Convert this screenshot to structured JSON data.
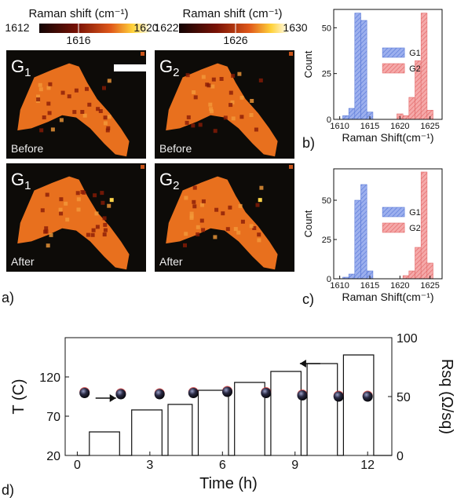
{
  "colors": {
    "g1": "#5b7bd8",
    "g2": "#e36a6a",
    "map_bg": "#0d0b08",
    "map_fill": "#e8701e",
    "map_hot": "#ffd44a",
    "line": "#111111",
    "dot": "#1a1a2a"
  },
  "colorbars": [
    {
      "title": "Raman shift (cm⁻¹)",
      "ticks": [
        "1612",
        "1616",
        "1620"
      ]
    },
    {
      "title": "Raman shift (cm⁻¹)",
      "ticks": [
        "1622",
        "1626",
        "1630"
      ]
    }
  ],
  "maps": [
    {
      "peak": "G",
      "sub": "1",
      "state": "Before"
    },
    {
      "peak": "G",
      "sub": "2",
      "state": "Before"
    },
    {
      "peak": "G",
      "sub": "1",
      "state": "After"
    },
    {
      "peak": "G",
      "sub": "2",
      "state": "After"
    }
  ],
  "panel_labels": {
    "a": "a)",
    "b": "b)",
    "c": "c)",
    "d": "d)"
  },
  "chart_data": [
    {
      "type": "bar",
      "panel": "b",
      "xlabel": "Raman Shift(cm⁻¹)",
      "ylabel": "Count",
      "xlim": [
        1609,
        1627
      ],
      "ylim": [
        0,
        60
      ],
      "xticks": [
        "1610",
        "1615",
        "1620",
        "1625"
      ],
      "yticks": [
        "0",
        "25",
        "50"
      ],
      "bin_width": 1,
      "legend_position": "right",
      "series": [
        {
          "name": "G1",
          "bins": [
            1611,
            1612,
            1613,
            1614,
            1615
          ],
          "values": [
            2,
            6,
            58,
            54,
            4
          ]
        },
        {
          "name": "G2",
          "bins": [
            1620,
            1621,
            1622,
            1623,
            1624,
            1625
          ],
          "values": [
            3,
            2,
            12,
            32,
            58,
            5
          ]
        }
      ]
    },
    {
      "type": "bar",
      "panel": "c",
      "xlabel": "Raman Shift(cm⁻¹)",
      "ylabel": "Count",
      "xlim": [
        1609,
        1627
      ],
      "ylim": [
        0,
        70
      ],
      "xticks": [
        "1610",
        "1615",
        "1620",
        "1625"
      ],
      "yticks": [
        "0",
        "25",
        "50"
      ],
      "bin_width": 1,
      "legend_position": "right",
      "series": [
        {
          "name": "G1",
          "bins": [
            1611,
            1612,
            1613,
            1614,
            1615
          ],
          "values": [
            1,
            3,
            50,
            60,
            5
          ]
        },
        {
          "name": "G2",
          "bins": [
            1621,
            1622,
            1623,
            1624,
            1625
          ],
          "values": [
            2,
            5,
            20,
            68,
            10
          ]
        }
      ]
    },
    {
      "type": "line",
      "panel": "d",
      "xlabel": "Time (h)",
      "ylabel": "T (C)",
      "y2label": "Rsq (Ω/sq)",
      "xlim": [
        -0.5,
        13
      ],
      "ylim": [
        20,
        170
      ],
      "y2lim": [
        0,
        100
      ],
      "xticks": [
        "0",
        "3",
        "6",
        "9",
        "12"
      ],
      "yticks": [
        "20",
        "70",
        "120"
      ],
      "y2ticks": [
        "0",
        "50",
        "100"
      ],
      "series": [
        {
          "name": "Temperature",
          "steps": [
            {
              "start": 0,
              "end": 0.5,
              "T": 20
            },
            {
              "start": 0.5,
              "end": 1.75,
              "T": 50
            },
            {
              "start": 1.75,
              "end": 2.25,
              "T": 20
            },
            {
              "start": 2.25,
              "end": 3.5,
              "T": 78
            },
            {
              "start": 3.5,
              "end": 3.75,
              "T": 20
            },
            {
              "start": 3.75,
              "end": 4.75,
              "T": 85
            },
            {
              "start": 4.75,
              "end": 5.0,
              "T": 20
            },
            {
              "start": 5.0,
              "end": 6.25,
              "T": 103
            },
            {
              "start": 6.25,
              "end": 6.5,
              "T": 20
            },
            {
              "start": 6.5,
              "end": 7.75,
              "T": 113
            },
            {
              "start": 7.75,
              "end": 8.0,
              "T": 20
            },
            {
              "start": 8.0,
              "end": 9.25,
              "T": 127
            },
            {
              "start": 9.25,
              "end": 9.5,
              "T": 20
            },
            {
              "start": 9.5,
              "end": 10.75,
              "T": 137
            },
            {
              "start": 10.75,
              "end": 11.0,
              "T": 20
            },
            {
              "start": 11.0,
              "end": 12.25,
              "T": 148
            },
            {
              "start": 12.25,
              "end": 13.0,
              "T": 20
            }
          ]
        },
        {
          "name": "Rsq",
          "x": [
            0.3,
            1.8,
            3.4,
            4.8,
            6.2,
            7.8,
            9.3,
            10.8,
            12.0
          ],
          "y": [
            53,
            52,
            52,
            53,
            54,
            53,
            51,
            50,
            50
          ]
        }
      ],
      "arrows": [
        {
          "direction": "right",
          "at_time": 1.6,
          "at_T": 93
        },
        {
          "direction": "left",
          "at_time": 9.2,
          "at_T": 137
        }
      ]
    }
  ]
}
